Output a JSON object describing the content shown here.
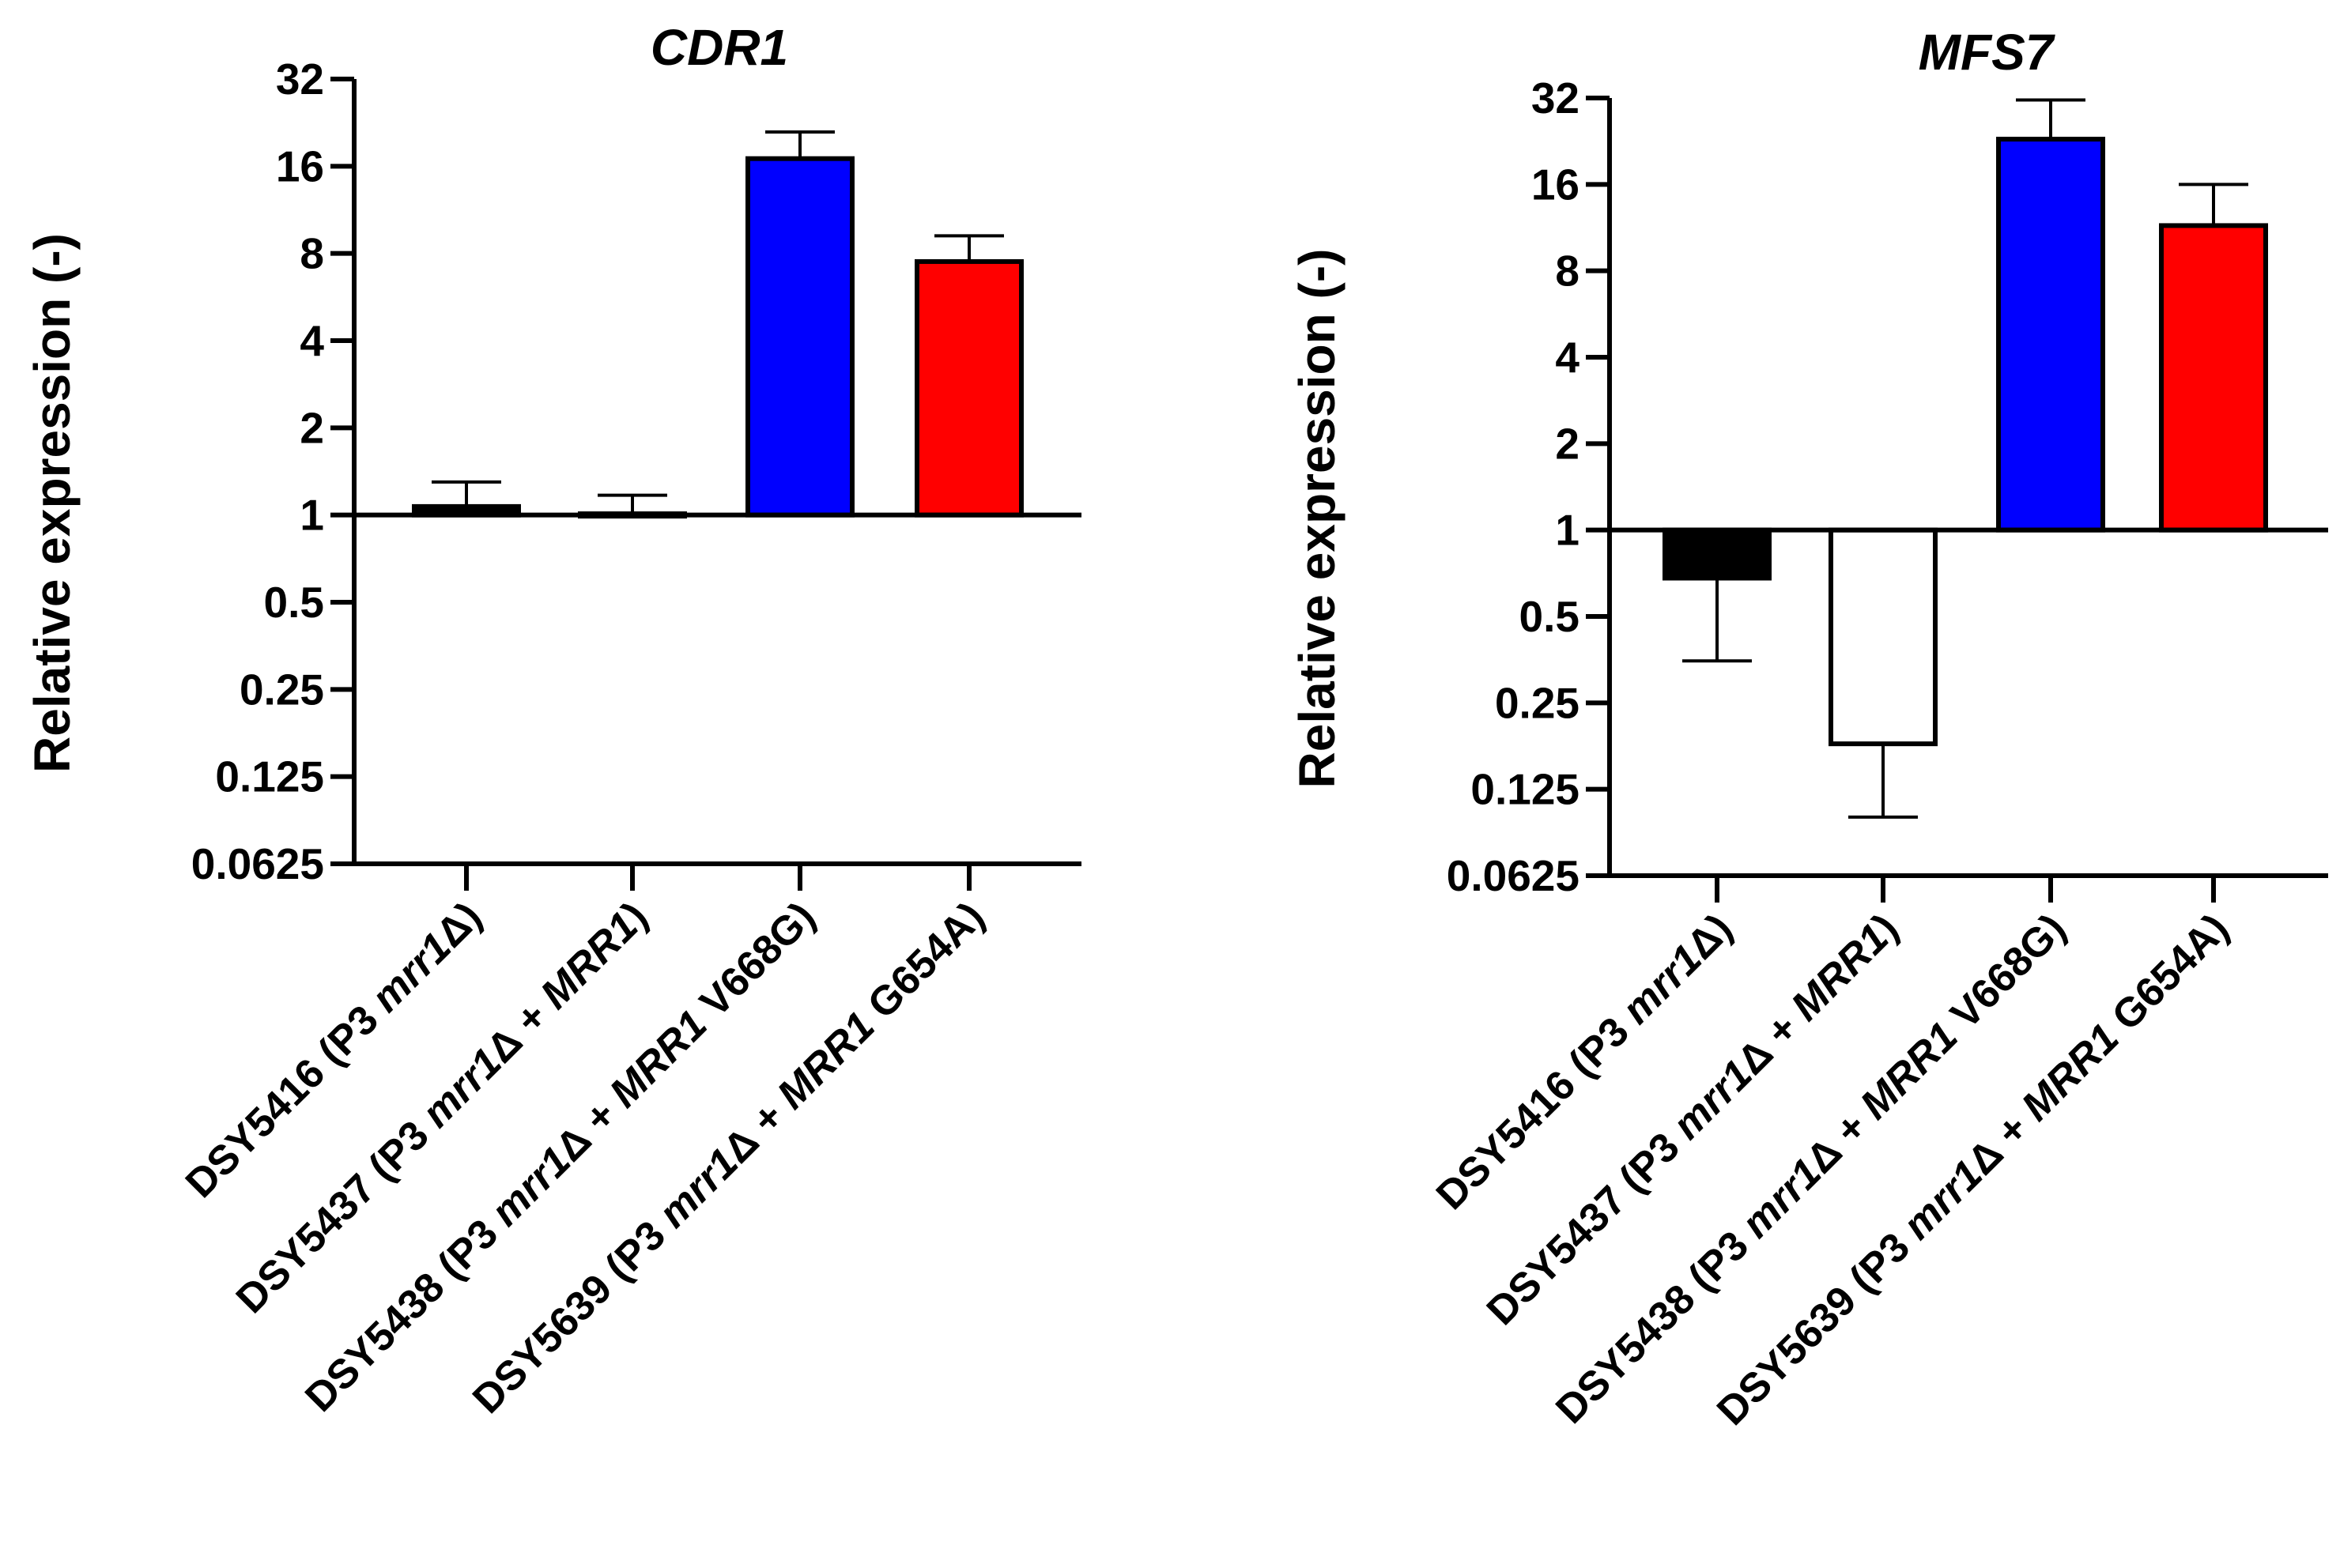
{
  "chart_data": [
    {
      "type": "bar",
      "title": "CDR1",
      "xlabel": "",
      "ylabel": "Relative expression (-)",
      "yscale": "log2",
      "ylim": [
        0.0625,
        32
      ],
      "baseline": 1,
      "yticks": [
        0.0625,
        0.125,
        0.25,
        0.5,
        1,
        2,
        4,
        8,
        16,
        32
      ],
      "ytick_labels": [
        "0.0625",
        "0.125",
        "0.25",
        "0.5",
        "1",
        "2",
        "4",
        "8",
        "16",
        "32"
      ],
      "grid": false,
      "legend": "none",
      "categories": [
        {
          "strain": "DSY5416",
          "pre": " (P3 ",
          "gene": "mrr1",
          "mid": "Δ",
          "italic2": "",
          "post": ")"
        },
        {
          "strain": "DSY5437",
          "pre": " (P3 ",
          "gene": "mrr1",
          "mid": "Δ + ",
          "italic2": "MRR1",
          "post": ")"
        },
        {
          "strain": "DSY5438",
          "pre": " (P3 ",
          "gene": "mrr1",
          "mid": "Δ + ",
          "italic2": "MRR1",
          "post": " V668G)"
        },
        {
          "strain": "DSY5639",
          "pre": " (P3 ",
          "gene": "mrr1",
          "mid": "Δ + ",
          "italic2": "MRR1",
          "post": " G654A)"
        }
      ],
      "values": [
        1.07,
        1.01,
        17.0,
        7.5
      ],
      "error_upper": [
        1.3,
        1.17,
        21.0,
        9.2
      ],
      "colors": [
        "#000000",
        "#ffffff",
        "#0000ff",
        "#ff0000"
      ]
    },
    {
      "type": "bar",
      "title": "MFS7",
      "xlabel": "",
      "ylabel": "Relative expression (-)",
      "yscale": "log2",
      "ylim": [
        0.0625,
        32
      ],
      "baseline": 1,
      "yticks": [
        0.0625,
        0.125,
        0.25,
        0.5,
        1,
        2,
        4,
        8,
        16,
        32
      ],
      "ytick_labels": [
        "0.0625",
        "0.125",
        "0.25",
        "0.5",
        "1",
        "2",
        "4",
        "8",
        "16",
        "32"
      ],
      "grid": false,
      "legend": "none",
      "categories": [
        {
          "strain": "DSY5416",
          "pre": " (P3 ",
          "gene": "mrr1",
          "mid": "Δ",
          "italic2": "",
          "post": ")"
        },
        {
          "strain": "DSY5437",
          "pre": " (P3 ",
          "gene": "mrr1",
          "mid": "Δ + ",
          "italic2": "MRR1",
          "post": ")"
        },
        {
          "strain": "DSY5438",
          "pre": " (P3 ",
          "gene": "mrr1",
          "mid": "Δ + ",
          "italic2": "MRR1",
          "post": " V668G)"
        },
        {
          "strain": "DSY5639",
          "pre": " (P3 ",
          "gene": "mrr1",
          "mid": "Δ + ",
          "italic2": "MRR1",
          "post": " G654A)"
        }
      ],
      "values": [
        0.68,
        0.18,
        23.0,
        11.5
      ],
      "error_lower": [
        0.35,
        0.1,
        null,
        null
      ],
      "error_upper": [
        null,
        null,
        31.5,
        16.0
      ],
      "colors": [
        "#000000",
        "#ffffff",
        "#0000ff",
        "#ff0000"
      ]
    }
  ]
}
